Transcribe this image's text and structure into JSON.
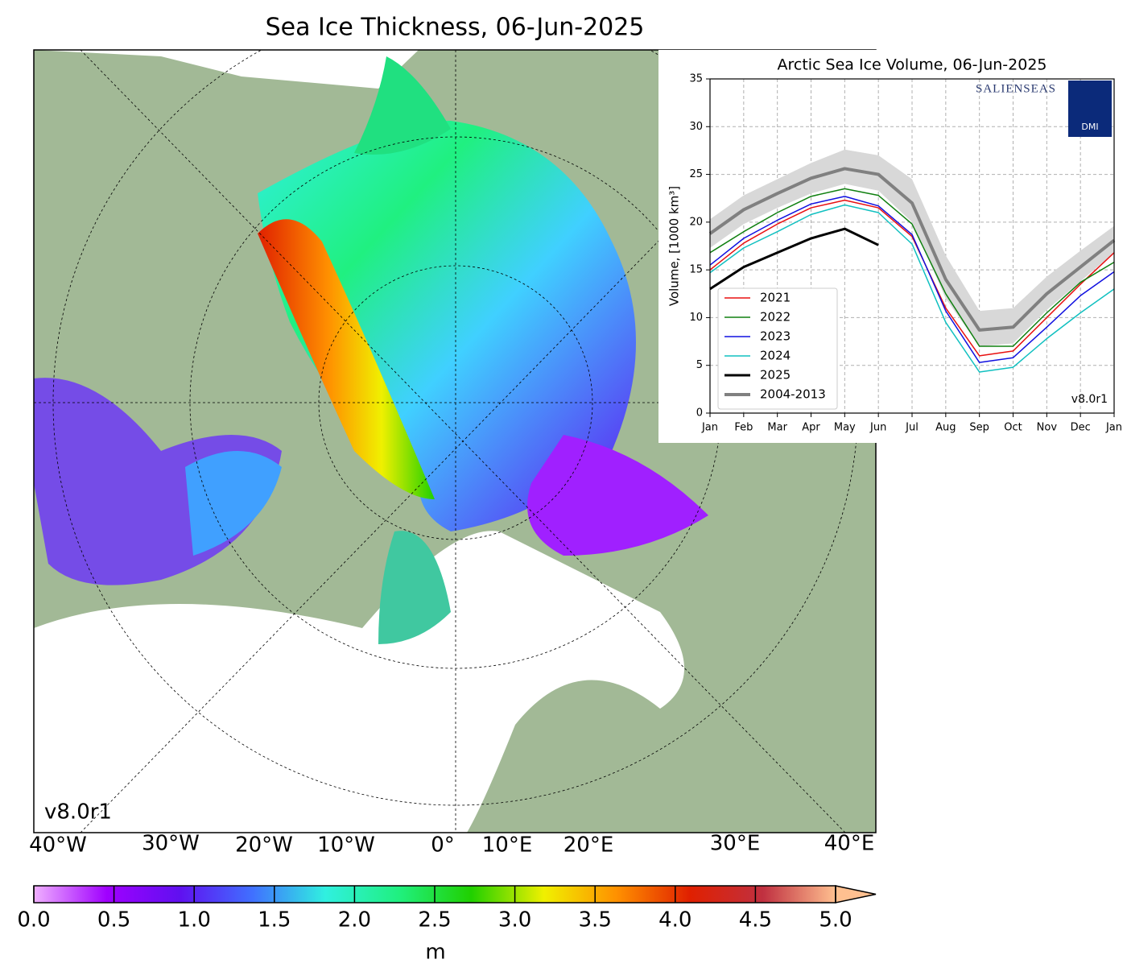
{
  "map": {
    "title": "Sea Ice Thickness, 06-Jun-2025",
    "version": "v8.0r1",
    "lon_labels": [
      "40°W",
      "30°W",
      "20°W",
      "10°W",
      "0°",
      "10°E",
      "20°E",
      "30°E",
      "40°E"
    ]
  },
  "colorbar": {
    "label": "m",
    "clim": [
      0,
      5
    ],
    "colors": [
      "#f0b0ff",
      "#a000ff",
      "#6010f0",
      "#4070ff",
      "#30f0e0",
      "#20f080",
      "#20d000",
      "#f0f000",
      "#ff9000",
      "#e02000",
      "#c03040",
      "#ffc090"
    ],
    "ticks": [
      {
        "value": 0,
        "label": "0.0"
      },
      {
        "value": 0.5,
        "label": "0.5"
      },
      {
        "value": 1,
        "label": "1.0"
      },
      {
        "value": 1.5,
        "label": "1.5"
      },
      {
        "value": 2,
        "label": "2.0"
      },
      {
        "value": 2.5,
        "label": "2.5"
      },
      {
        "value": 3,
        "label": "3.0"
      },
      {
        "value": 3.5,
        "label": "3.5"
      },
      {
        "value": 4,
        "label": "4.0"
      },
      {
        "value": 4.5,
        "label": "4.5"
      },
      {
        "value": 5,
        "label": "5.0"
      }
    ]
  },
  "chart_data": {
    "type": "line",
    "title": "Arctic Sea Ice Volume, 06-Jun-2025",
    "y_label": "Volume, [1000 km³]",
    "version": "v8.0r1",
    "logo_text": "SALIENSEAS",
    "logo_dmi": "DMI",
    "categories": [
      "Jan",
      "Feb",
      "Mar",
      "Apr",
      "May",
      "Jun",
      "Jul",
      "Aug",
      "Sep",
      "Oct",
      "Nov",
      "Dec",
      "Jan"
    ],
    "ylim": [
      0,
      35
    ],
    "yticks": [
      0,
      5,
      10,
      15,
      20,
      25,
      30,
      35
    ],
    "grid": true,
    "legend": "lower left",
    "series": [
      {
        "name": "2021",
        "color": "#e81010",
        "width": 1.5,
        "values": [
          15,
          17.8,
          19.8,
          21.5,
          22.3,
          21.5,
          18.5,
          11,
          6,
          6.5,
          10,
          13.5,
          16.8
        ]
      },
      {
        "name": "2022",
        "color": "#108010",
        "width": 1.5,
        "values": [
          16.8,
          19,
          21,
          22.7,
          23.5,
          22.8,
          19.8,
          12.5,
          7,
          7,
          10.5,
          13.7,
          15.8
        ]
      },
      {
        "name": "2023",
        "color": "#1010e0",
        "width": 1.5,
        "values": [
          15.5,
          18.3,
          20.2,
          21.9,
          22.7,
          21.7,
          18.7,
          10.7,
          5.3,
          5.8,
          9,
          12.3,
          14.8
        ]
      },
      {
        "name": "2024",
        "color": "#10c0c0",
        "width": 1.5,
        "values": [
          14.7,
          17.3,
          19,
          20.8,
          21.8,
          21,
          17.7,
          9.5,
          4.3,
          4.8,
          7.8,
          10.5,
          13
        ]
      },
      {
        "name": "2025",
        "color": "#000000",
        "width": 3,
        "values": [
          13,
          15.3,
          16.8,
          18.3,
          19.3,
          17.6,
          null,
          null,
          null,
          null,
          null,
          null,
          null
        ]
      },
      {
        "name": "2004-2013",
        "color": "#808080",
        "width": 4,
        "band_color": "#d8d8d8",
        "values": [
          18.8,
          21.3,
          23,
          24.6,
          25.6,
          25,
          22,
          14,
          8.7,
          9,
          12.5,
          15.3,
          18.1
        ],
        "range_low": [
          17.3,
          19.8,
          21.5,
          23,
          24,
          23.3,
          20,
          12,
          7,
          7.3,
          10.8,
          13.8,
          16.8
        ],
        "range_high": [
          20.3,
          22.8,
          24.5,
          26.2,
          27.6,
          27,
          24.5,
          16.5,
          10.7,
          11,
          14.3,
          17,
          19.6
        ]
      }
    ]
  }
}
